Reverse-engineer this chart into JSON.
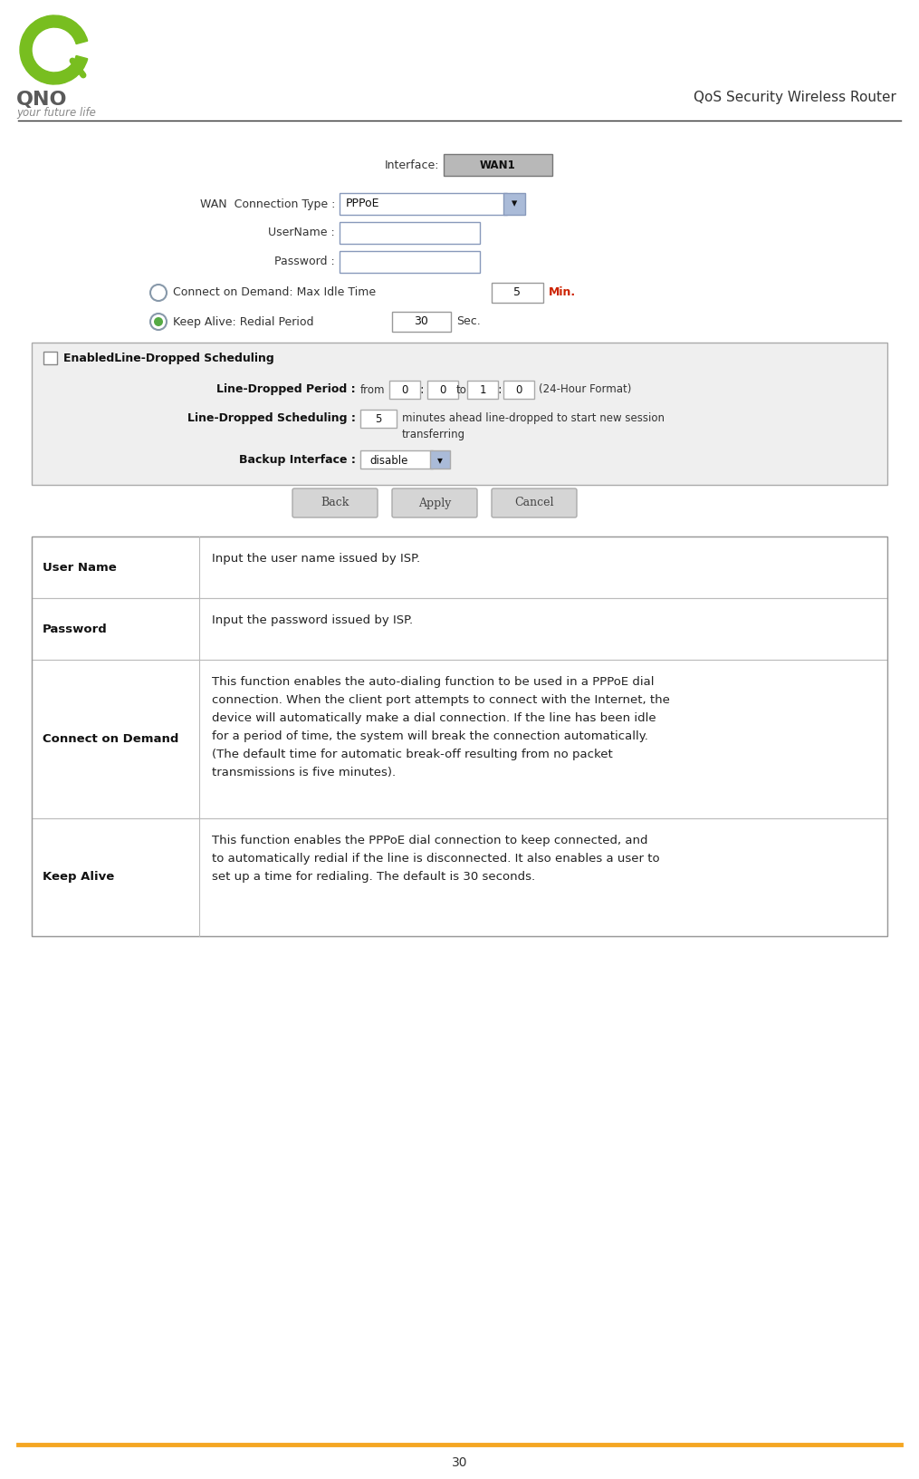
{
  "title": "QoS Security Wireless Router",
  "page_number": "30",
  "bg_color": "#ffffff",
  "orange_line_color": "#f5a623",
  "fig_w": 10.15,
  "fig_h": 16.32,
  "dpi": 100,
  "table_rows": [
    {
      "label": "User Name",
      "text": "Input the user name issued by ISP.",
      "text_lines": [
        "Input the user name issued by ISP."
      ]
    },
    {
      "label": "Password",
      "text": "Input the password issued by ISP.",
      "text_lines": [
        "Input the password issued by ISP."
      ]
    },
    {
      "label": "Connect on Demand",
      "text_lines": [
        "This function enables the auto-dialing function to be used in a PPPoE dial",
        "connection. When the client port attempts to connect with the Internet, the",
        "device will automatically make a dial connection. If the line has been idle",
        "for a period of time, the system will break the connection automatically.",
        "(The default time for automatic break-off resulting from no packet",
        "transmissions is five minutes)."
      ]
    },
    {
      "label": "Keep Alive",
      "text_lines": [
        "This function enables the PPPoE dial connection to keep connected, and",
        "to automatically redial if the line is disconnected. It also enables a user to",
        "set up a time for redialing. The default is 30 seconds."
      ]
    }
  ]
}
